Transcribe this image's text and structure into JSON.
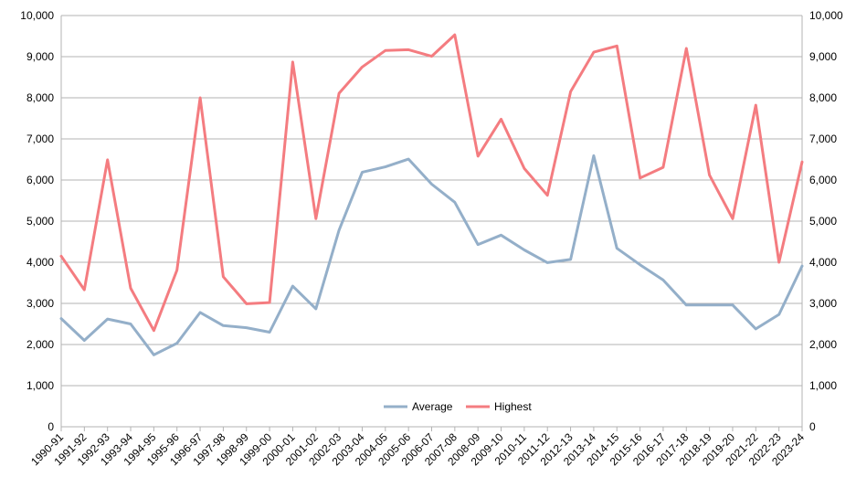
{
  "chart_data": {
    "type": "line",
    "title": "",
    "xlabel": "",
    "ylabel": "",
    "ylim": [
      0,
      10000
    ],
    "yticks": [
      0,
      1000,
      2000,
      3000,
      4000,
      5000,
      6000,
      7000,
      8000,
      9000,
      10000
    ],
    "ytick_labels": [
      "0",
      "1,000",
      "2,000",
      "3,000",
      "4,000",
      "5,000",
      "6,000",
      "7,000",
      "8,000",
      "9,000",
      "10,000"
    ],
    "secondary_y_axis": true,
    "grid": "horizontal",
    "legend_position": "bottom-center inside plot",
    "categories": [
      "1990-91",
      "1991-92",
      "1992-93",
      "1993-94",
      "1994-95",
      "1995-96",
      "1996-97",
      "1997-98",
      "1998-99",
      "1999-00",
      "2000-01",
      "2001-02",
      "2002-03",
      "2003-04",
      "2004-05",
      "2005-06",
      "2006-07",
      "2007-08",
      "2008-09",
      "2009-10",
      "2010-11",
      "2011-12",
      "2012-13",
      "2013-14",
      "2014-15",
      "2015-16",
      "2016-17",
      "2017-18",
      "2018-19",
      "2019-20",
      "2021-22",
      "2022-23",
      "2023-24"
    ],
    "series": [
      {
        "name": "Average",
        "color": "#94afc9",
        "values": [
          2630,
          2100,
          2620,
          2500,
          1750,
          2030,
          2780,
          2460,
          2410,
          2300,
          3420,
          2870,
          4780,
          6190,
          6320,
          6510,
          5900,
          5460,
          4430,
          4660,
          4300,
          3990,
          4070,
          6590,
          4340,
          3940,
          3570,
          2960,
          2960,
          2960,
          2380,
          2730,
          3910
        ]
      },
      {
        "name": "Highest",
        "color": "#f47c80",
        "values": [
          4150,
          3330,
          6490,
          3370,
          2340,
          3810,
          8000,
          3650,
          2990,
          3020,
          8870,
          5060,
          8110,
          8750,
          9150,
          9170,
          9010,
          9530,
          6580,
          7480,
          6280,
          5630,
          8150,
          9110,
          9260,
          6050,
          6310,
          9200,
          6120,
          5060,
          7820,
          4000,
          6440
        ]
      }
    ]
  }
}
